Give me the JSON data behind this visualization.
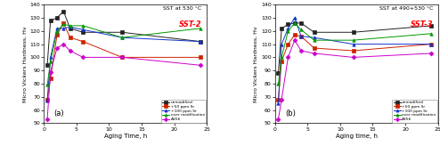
{
  "panel_a": {
    "title_line1": "SST at 530 °C",
    "title_line2": "SST-2",
    "xlabel": "Aging Time, h",
    "ylabel": "Micro Vickers Hardness, Hv",
    "xlim": [
      0,
      25
    ],
    "ylim": [
      50,
      140
    ],
    "yticks": [
      50,
      60,
      70,
      80,
      90,
      100,
      110,
      120,
      130,
      140
    ],
    "xticks": [
      0,
      5,
      10,
      15,
      20,
      25
    ],
    "label": "(a)",
    "series": {
      "unmodified": {
        "x": [
          0.5,
          1,
          2,
          3,
          4,
          6,
          12,
          24
        ],
        "y": [
          94,
          128,
          130,
          135,
          122,
          119,
          119,
          112
        ],
        "color": "#222222",
        "marker": "s",
        "linestyle": "-"
      },
      "+50 ppm Sr": {
        "x": [
          0.5,
          1,
          2,
          3,
          4,
          6,
          12,
          24
        ],
        "y": [
          68,
          84,
          117,
          126,
          115,
          112,
          100,
          100
        ],
        "color": "#cc2200",
        "marker": "s",
        "linestyle": "-"
      },
      "+100 ppm Sr": {
        "x": [
          0.5,
          1,
          2,
          3,
          4,
          6,
          12,
          24
        ],
        "y": [
          67,
          100,
          122,
          122,
          123,
          121,
          115,
          112
        ],
        "color": "#1133cc",
        "marker": "^",
        "linestyle": "-"
      },
      "over modification": {
        "x": [
          0.5,
          1,
          2,
          3,
          4,
          6,
          12,
          24
        ],
        "y": [
          79,
          97,
          120,
          125,
          124,
          124,
          115,
          122
        ],
        "color": "#009900",
        "marker": "^",
        "linestyle": "-"
      },
      "A356": {
        "x": [
          0.5,
          1,
          2,
          3,
          4,
          6,
          12,
          24
        ],
        "y": [
          53,
          89,
          107,
          110,
          105,
          100,
          100,
          94
        ],
        "color": "#cc00cc",
        "marker": "D",
        "linestyle": "-"
      }
    },
    "legend_labels": [
      "unmodified",
      "+50 ppm Sr",
      "+100 ppm Sr",
      "over modification",
      "A356"
    ]
  },
  "panel_b": {
    "title_line1": "SST at 490+530 °C",
    "title_line2": "SST-3",
    "xlabel": "Aging time, h",
    "ylabel": "Micro Vickers Hardness, Hv",
    "xlim": [
      0,
      25
    ],
    "ylim": [
      50,
      140
    ],
    "yticks": [
      50,
      60,
      70,
      80,
      90,
      100,
      110,
      120,
      130,
      140
    ],
    "xticks": [
      0,
      5,
      10,
      15,
      20,
      25
    ],
    "label": "(b)",
    "series": {
      "unmodified": {
        "x": [
          0.5,
          1,
          2,
          3,
          4,
          6,
          12,
          24
        ],
        "y": [
          88,
          122,
          125,
          126,
          126,
          119,
          119,
          124
        ],
        "color": "#222222",
        "marker": "s",
        "linestyle": "-"
      },
      "+50 ppm Sr": {
        "x": [
          0.5,
          1,
          2,
          3,
          4,
          6,
          12,
          24
        ],
        "y": [
          68,
          97,
          110,
          117,
          116,
          107,
          105,
          110
        ],
        "color": "#cc2200",
        "marker": "s",
        "linestyle": "-"
      },
      "+100 ppm Sr": {
        "x": [
          0.5,
          1,
          2,
          3,
          4,
          6,
          12,
          24
        ],
        "y": [
          65,
          110,
          122,
          130,
          116,
          115,
          110,
          110
        ],
        "color": "#1133cc",
        "marker": "^",
        "linestyle": "-"
      },
      "over modification": {
        "x": [
          0.5,
          1,
          2,
          3,
          4,
          6,
          12,
          24
        ],
        "y": [
          80,
          100,
          120,
          126,
          121,
          113,
          113,
          118
        ],
        "color": "#009900",
        "marker": "^",
        "linestyle": "-"
      },
      "A356": {
        "x": [
          0.5,
          1,
          2,
          3,
          4,
          6,
          12,
          24
        ],
        "y": [
          53,
          68,
          100,
          113,
          105,
          103,
          100,
          103
        ],
        "color": "#cc00cc",
        "marker": "D",
        "linestyle": "-"
      }
    },
    "legend_labels": [
      "unmodified",
      "+50 ppm Sr",
      "+100 ppm Sr",
      "over modification",
      "A356"
    ]
  }
}
